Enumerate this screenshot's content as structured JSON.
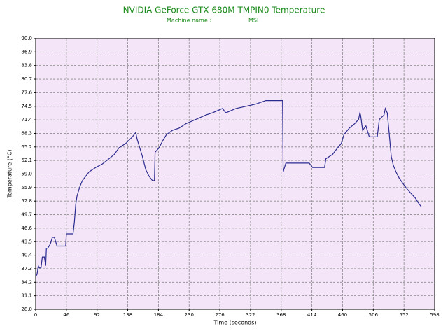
{
  "chart_data": {
    "type": "line",
    "title": "NVIDIA GeForce GTX 680M TMPIN0 Temperature",
    "machine_label": "Machine name :",
    "machine_name": "MSI",
    "x_label": "Time (seconds)",
    "y_label": "Temperature (°C)",
    "x": [
      0,
      2,
      4,
      5,
      8,
      10,
      13,
      15,
      16,
      18,
      22,
      25,
      28,
      32,
      45,
      46,
      56,
      58,
      60,
      62,
      66,
      70,
      75,
      80,
      90,
      100,
      110,
      118,
      125,
      135,
      145,
      150,
      152,
      156,
      160,
      165,
      170,
      175,
      178,
      179,
      185,
      190,
      196,
      205,
      215,
      225,
      240,
      255,
      265,
      280,
      285,
      300,
      315,
      330,
      345,
      370,
      371,
      375,
      410,
      415,
      433,
      435,
      445,
      450,
      458,
      462,
      470,
      478,
      484,
      486,
      487,
      490,
      495,
      500,
      512,
      515,
      522,
      524,
      527,
      530,
      533,
      536,
      540,
      545,
      552,
      557,
      563,
      569,
      573,
      578
    ],
    "values": [
      35.5,
      36,
      38,
      37.5,
      37.5,
      40,
      40,
      38,
      42,
      42,
      43,
      44.5,
      44.5,
      42.5,
      42.5,
      45.3,
      45.3,
      48,
      52,
      54,
      56,
      57.5,
      58.5,
      59.5,
      60.5,
      61.3,
      62.5,
      63.5,
      65,
      66,
      67.5,
      68.5,
      67,
      65,
      63,
      60,
      58.5,
      57.5,
      57.5,
      64,
      65,
      66.5,
      68,
      69,
      69.5,
      70.5,
      71.5,
      72.5,
      73,
      74,
      73,
      74,
      74.5,
      75,
      75.8,
      75.8,
      59.5,
      61.5,
      61.5,
      60.5,
      60.5,
      62.5,
      63.5,
      64.5,
      66,
      68,
      69.5,
      70.5,
      71.5,
      73,
      72.5,
      69,
      70,
      67.5,
      67.5,
      71.5,
      72.5,
      74,
      73,
      68,
      63,
      61,
      59.5,
      58,
      56.5,
      55.5,
      54.5,
      53.5,
      52.5,
      51.5
    ],
    "color": "#2b2b8f",
    "plot_background": "#f4e6f8",
    "title_color": "#1a8a1a",
    "xlim": [
      0,
      598
    ],
    "xticks": [
      0,
      46,
      92,
      138,
      184,
      230,
      276,
      322,
      368,
      414,
      460,
      506,
      552,
      598
    ],
    "ylim": [
      28,
      90
    ],
    "yticks": [
      {
        "value": 28,
        "label": "28.0"
      },
      31.1,
      34.2,
      37.3,
      40.4,
      43.5,
      46.6,
      49.7,
      52.8,
      55.9,
      {
        "value": 59,
        "label": "59.0"
      },
      62.1,
      65.2,
      68.3,
      71.4,
      74.5,
      77.6,
      80.7,
      83.8,
      86.9,
      {
        "value": 90,
        "label": "90.0"
      }
    ],
    "grid": true
  }
}
